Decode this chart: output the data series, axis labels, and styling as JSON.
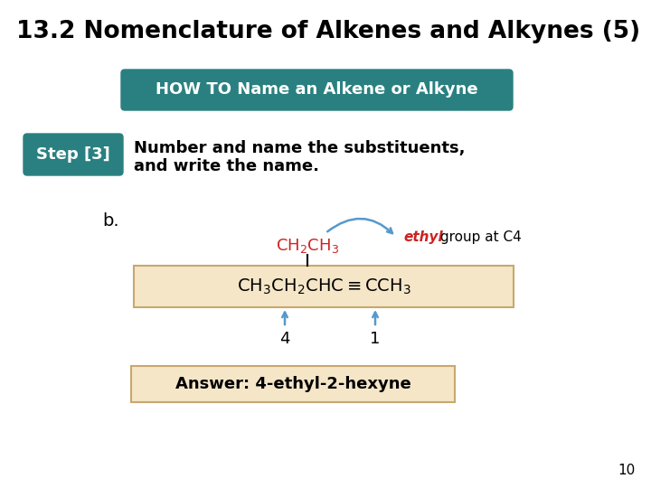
{
  "title": "13.2 Nomenclature of Alkenes and Alkynes (5)",
  "title_fontsize": 19,
  "title_color": "#000000",
  "bg_color": "#ffffff",
  "howto_text": "HOW TO Name an Alkene or Alkyne",
  "howto_bg": "#2a8080",
  "howto_text_color": "#ffffff",
  "step_text": "Step [3]",
  "step_bg": "#2a8080",
  "step_text_color": "#ffffff",
  "desc_line1": "Number and name the substituents,",
  "desc_line2": "and write the name.",
  "label_b": "b.",
  "ethyl_label": "ethyl",
  "group_at": " group at C4",
  "num4": "4",
  "num1": "1",
  "answer_text": "Answer: 4-ethyl-2-hexyne",
  "answer_bg": "#f5e6c8",
  "molecule_box_bg": "#f5e6c8",
  "molecule_box_edge": "#c8a86e",
  "red_color": "#cc2222",
  "blue_color": "#5599cc",
  "black_color": "#000000",
  "page_num": "10"
}
